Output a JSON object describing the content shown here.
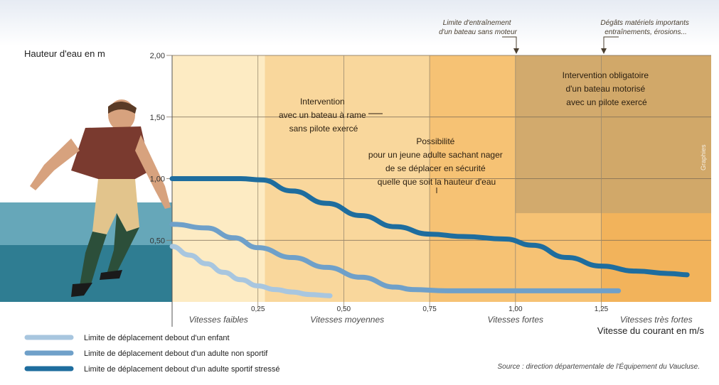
{
  "chart_data": {
    "type": "line",
    "ylabel": "Hauteur d'eau en m",
    "xlabel": "Vitesse du courant en m/s",
    "xlim": [
      0,
      1.57
    ],
    "ylim": [
      0,
      2.0
    ],
    "x_ticks": [
      "0,25",
      "0,50",
      "0,75",
      "1,00",
      "1,25"
    ],
    "y_ticks": [
      "2,00",
      "1,50",
      "1,00",
      "0,50"
    ],
    "speed_zones": [
      {
        "label": "Vitesses faibles",
        "x": [
          0,
          0.27
        ],
        "color": "#fdebc3"
      },
      {
        "label": "Vitesses moyennes",
        "x": [
          0.27,
          0.75
        ],
        "color": "#f9d79c"
      },
      {
        "label": "Vitesses fortes",
        "x": [
          0.75,
          1.25
        ],
        "color": "#f6c274"
      },
      {
        "label": "Vitesses très fortes",
        "x": [
          1.25,
          1.57
        ],
        "color": "#f2b35b"
      }
    ],
    "region_boat_motor": {
      "x": [
        1.0,
        1.57
      ],
      "y": [
        0.72,
        2.0
      ],
      "color": "#cba66c"
    },
    "series": [
      {
        "name": "Limite de déplacement debout d'un enfant",
        "color": "#a8c6df",
        "x": [
          0,
          0.05,
          0.1,
          0.15,
          0.2,
          0.25,
          0.3,
          0.35,
          0.4,
          0.46
        ],
        "y": [
          0.45,
          0.38,
          0.31,
          0.24,
          0.18,
          0.13,
          0.1,
          0.08,
          0.06,
          0.05
        ]
      },
      {
        "name": "Limite de déplacement debout d'un adulte non sportif",
        "color": "#6fa0c9",
        "x": [
          0,
          0.1,
          0.18,
          0.25,
          0.35,
          0.45,
          0.55,
          0.65,
          0.7,
          0.8,
          1.0,
          1.2,
          1.3
        ],
        "y": [
          0.63,
          0.6,
          0.52,
          0.44,
          0.36,
          0.28,
          0.2,
          0.12,
          0.1,
          0.09,
          0.09,
          0.09,
          0.09
        ]
      },
      {
        "name": "Limite de déplacement debout d'un adulte sportif stressé",
        "color": "#1e6d9e",
        "x": [
          0,
          0.1,
          0.2,
          0.26,
          0.35,
          0.45,
          0.55,
          0.65,
          0.75,
          0.85,
          0.97,
          1.05,
          1.15,
          1.25,
          1.35,
          1.45,
          1.5
        ],
        "y": [
          1.0,
          1.0,
          1.0,
          0.99,
          0.9,
          0.8,
          0.7,
          0.61,
          0.55,
          0.53,
          0.51,
          0.46,
          0.36,
          0.29,
          0.25,
          0.23,
          0.22
        ]
      }
    ]
  },
  "annotations": {
    "rowboat": "Intervention\navec un bateau à rame\nsans pilote exercé",
    "young_adult": "Possibilité\npour un jeune adulte sachant nager\nde se déplacer en sécurité\nquelle que soit la hauteur d'eau",
    "motorboat": "Intervention obligatoire\nd'un bateau motorisé\navec un pilote exercé",
    "top_limit_boat": "Limite d'entraînement\nd'un bateau sans moteur",
    "top_damage": "Dégâts matériels importants\nentraînements, érosions..."
  },
  "source": "Source : direction départementale de l'Équipement du Vaucluse.",
  "credit": "Graphies",
  "figure": {
    "water_color": "#3d8ca0"
  }
}
